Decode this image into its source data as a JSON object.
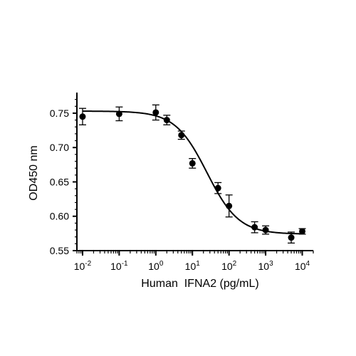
{
  "chart_data": {
    "type": "scatter",
    "xscale": "log",
    "xlim": [
      0.007,
      20000
    ],
    "ylim": [
      0.55,
      0.78
    ],
    "xlabel": "Human  IFNA2 (pg/mL)",
    "ylabel": "OD450 nm",
    "yticks": [
      0.55,
      0.6,
      0.65,
      0.7,
      0.75
    ],
    "ytick_labels": [
      "0.55",
      "0.60",
      "0.65",
      "0.70",
      "0.75"
    ],
    "xticks": [
      0.01,
      0.1,
      1,
      10,
      100,
      1000,
      10000
    ],
    "xtick_labels": [
      {
        "base": "10",
        "exp": "-2"
      },
      {
        "base": "10",
        "exp": "-1"
      },
      {
        "base": "10",
        "exp": "0"
      },
      {
        "base": "10",
        "exp": "1"
      },
      {
        "base": "10",
        "exp": "2"
      },
      {
        "base": "10",
        "exp": "3"
      },
      {
        "base": "10",
        "exp": "4"
      }
    ],
    "points": [
      {
        "x": 0.01,
        "y": 0.745,
        "err": 0.012
      },
      {
        "x": 0.1,
        "y": 0.749,
        "err": 0.01
      },
      {
        "x": 1,
        "y": 0.751,
        "err": 0.011
      },
      {
        "x": 2,
        "y": 0.74,
        "err": 0.007
      },
      {
        "x": 5,
        "y": 0.718,
        "err": 0.006
      },
      {
        "x": 10,
        "y": 0.677,
        "err": 0.007
      },
      {
        "x": 50,
        "y": 0.641,
        "err": 0.008
      },
      {
        "x": 100,
        "y": 0.615,
        "err": 0.016
      },
      {
        "x": 500,
        "y": 0.584,
        "err": 0.008
      },
      {
        "x": 1000,
        "y": 0.58,
        "err": 0.006
      },
      {
        "x": 5000,
        "y": 0.569,
        "err": 0.008
      },
      {
        "x": 10000,
        "y": 0.578,
        "err": 0.004
      }
    ],
    "fit_curve": {
      "model": "4PL",
      "top": 0.753,
      "bottom": 0.574,
      "ec50": 25,
      "hill": 1.0
    },
    "grid": false,
    "legend": "none",
    "marker_color": "#000000",
    "line_color": "#000000"
  }
}
